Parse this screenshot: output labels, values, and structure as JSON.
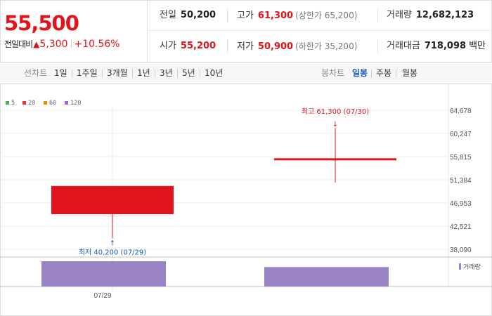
{
  "quote": {
    "price": "55,500",
    "change_label": "전일대비",
    "change_arrow": "▲",
    "change_value": "5,300",
    "change_percent": "+10.56%",
    "prev_close_label": "전일",
    "prev_close": "50,200",
    "high_label": "고가",
    "high": "61,300",
    "upper_limit": "(상한가 65,200)",
    "volume_label": "거래량",
    "volume": "12,682,123",
    "open_label": "시가",
    "open": "55,200",
    "low_label": "저가",
    "low": "50,900",
    "lower_limit": "(하한가 35,200)",
    "amount_label": "거래대금",
    "amount": "718,098",
    "amount_unit": "백만"
  },
  "tabs": {
    "line_category": "선차트",
    "line_periods": [
      "1일",
      "1주일",
      "3개월",
      "1년",
      "3년",
      "5년",
      "10년"
    ],
    "candle_category": "봉차트",
    "candle_periods": [
      "일봉",
      "주봉",
      "월봉"
    ],
    "active_candle": "일봉"
  },
  "colors": {
    "up": "#e2141b",
    "down": "#1259c3",
    "volume": "#9b84c5",
    "ma5": "#4caf50",
    "ma20": "#e53935",
    "ma60": "#fb8c00",
    "ma120": "#9c6ccf"
  },
  "chart_data": {
    "type": "candlestick",
    "legend": [
      {
        "name": "5",
        "color": "#4caf50"
      },
      {
        "name": "20",
        "color": "#e53935"
      },
      {
        "name": "60",
        "color": "#fb8c00"
      },
      {
        "name": "120",
        "color": "#9c6ccf"
      }
    ],
    "y_ticks": [
      64678,
      60247,
      55815,
      51384,
      46953,
      42521,
      38090
    ],
    "y_tick_labels": [
      "64,678",
      "60,247",
      "55,815",
      "51,384",
      "46,953",
      "42,521",
      "38,090"
    ],
    "ylim": [
      38090,
      64678
    ],
    "x_tick_label": "07/29",
    "candles": [
      {
        "date": "07/29",
        "open": 44800,
        "close": 50200,
        "high": 50200,
        "low": 40200
      },
      {
        "date": "07/30",
        "open": 55200,
        "close": 55500,
        "high": 61300,
        "low": 50900
      }
    ],
    "volumes": [
      {
        "date": "07/29",
        "relative": 1.0
      },
      {
        "date": "07/30",
        "relative": 0.77
      }
    ],
    "annotations": {
      "max_text": "최고 61,300 (07/30)",
      "max_arrow": "↓",
      "min_text": "최저 40,200 (07/29)",
      "min_arrow": "↑"
    },
    "volume_legend": "거래량"
  }
}
